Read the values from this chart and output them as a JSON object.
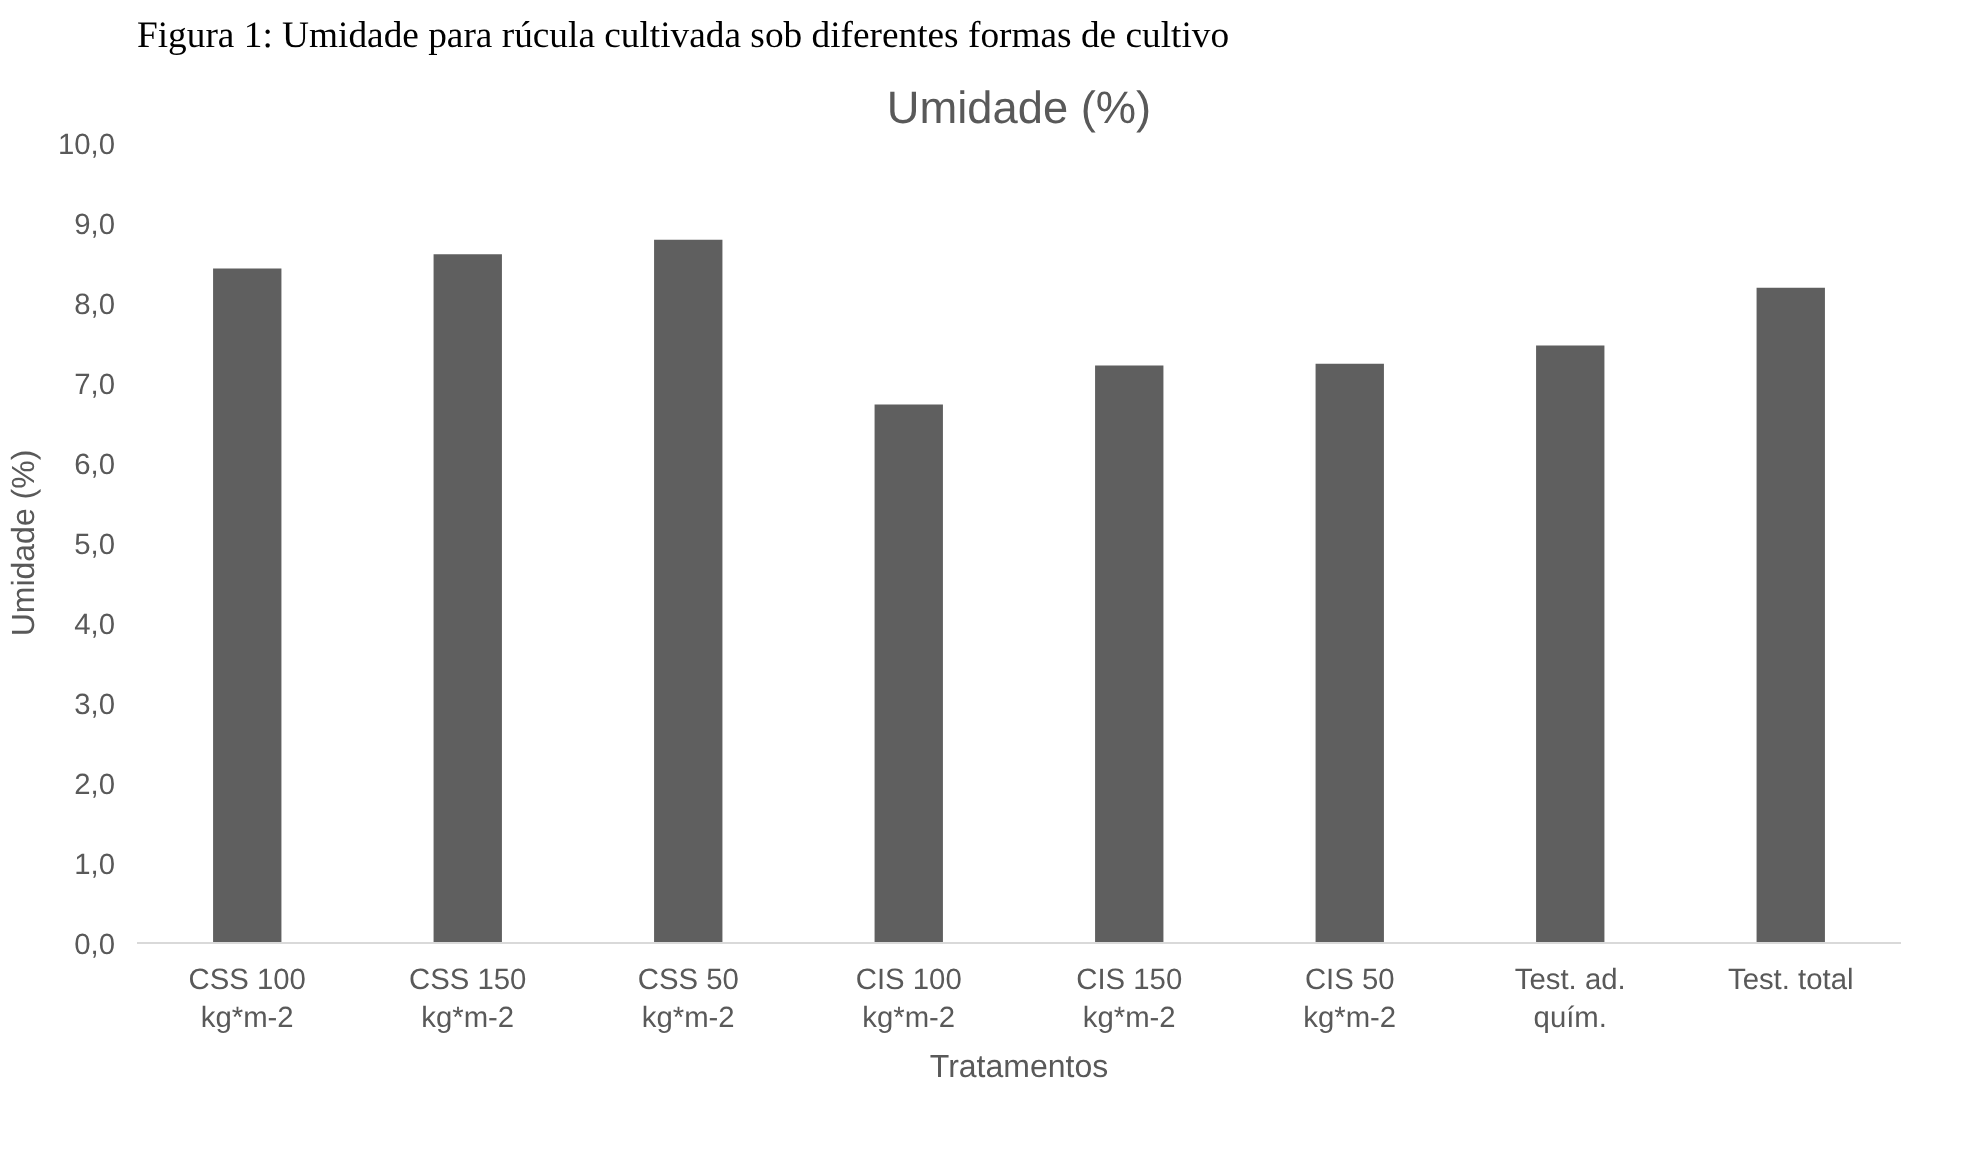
{
  "chart_data": {
    "type": "bar",
    "title": "Umidade (%)",
    "xlabel": "Tratamentos",
    "ylabel": "Umidade (%)",
    "annotations": [
      "Figura 1: Umidade para rúcula cultivada sob diferentes formas de cultivo"
    ],
    "categories": [
      "CSS 100\nkg*m-2",
      "CSS 150\nkg*m-2",
      "CSS 50\nkg*m-2",
      "CIS 100\nkg*m-2",
      "CIS 150\nkg*m-2",
      "CIS 50\nkg*m-2",
      "Test. ad.\nquím.",
      "Test. total"
    ],
    "values": [
      8.43,
      8.61,
      8.79,
      6.73,
      7.22,
      7.24,
      7.47,
      8.19
    ],
    "color": "#5f5f5f",
    "ylim": [
      0,
      10
    ],
    "yticks": [
      {
        "value": 0,
        "label": "0,0"
      },
      {
        "value": 1,
        "label": "1,0"
      },
      {
        "value": 2,
        "label": "2,0"
      },
      {
        "value": 3,
        "label": "3,0"
      },
      {
        "value": 4,
        "label": "4,0"
      },
      {
        "value": 5,
        "label": "5,0"
      },
      {
        "value": 6,
        "label": "6,0"
      },
      {
        "value": 7,
        "label": "7,0"
      },
      {
        "value": 8,
        "label": "8,0"
      },
      {
        "value": 9,
        "label": "9,0"
      },
      {
        "value": 10,
        "label": "10,0"
      }
    ],
    "grid": false
  }
}
